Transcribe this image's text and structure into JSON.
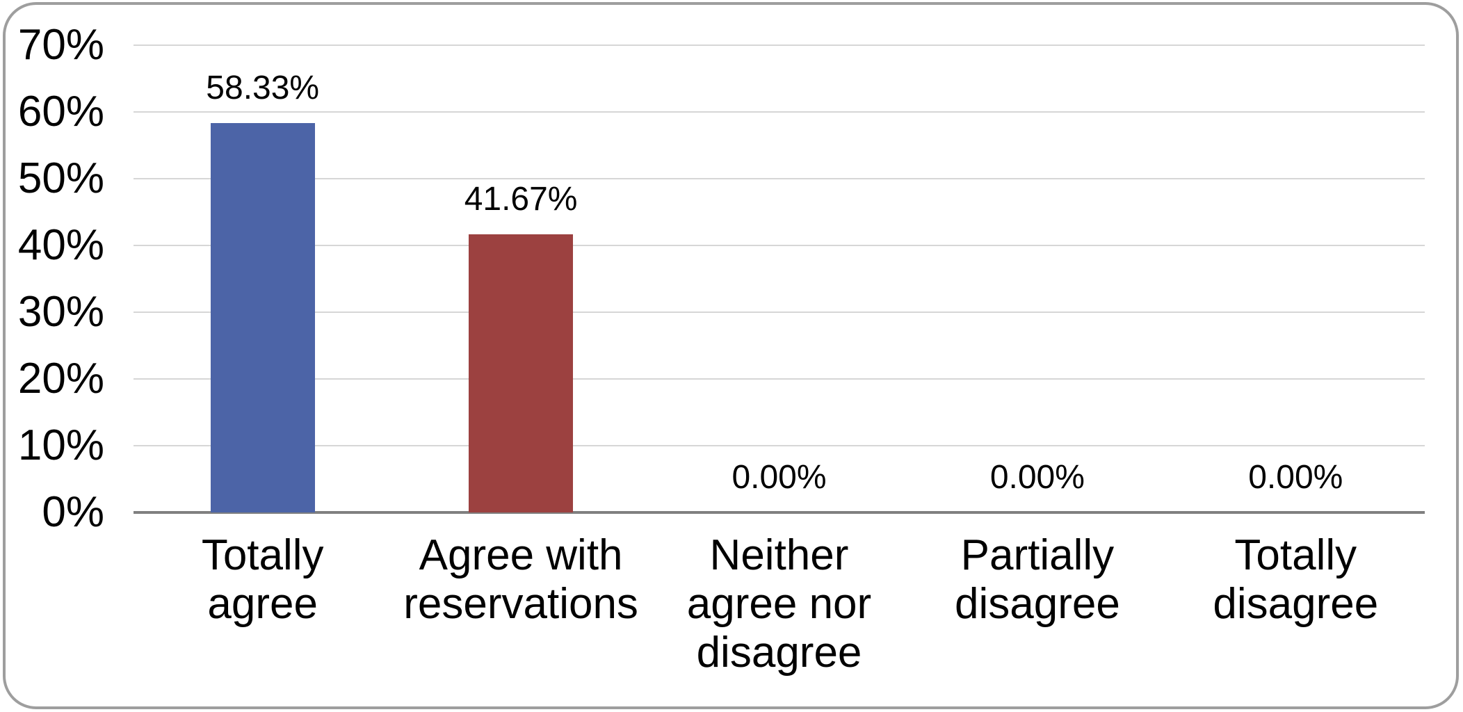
{
  "figure": {
    "type": "static-chart-figure",
    "frame_border_color": "#9e9e9e",
    "background_color": "#ffffff"
  },
  "chart_data": {
    "type": "bar",
    "title": "",
    "xlabel": "",
    "ylabel": "",
    "categories": [
      "Totally agree",
      "Agree with reservations",
      "Neither agree nor disagree",
      "Partially disagree",
      "Totally disagree"
    ],
    "category_lines": [
      "Totally\nagree",
      "Agree with\nreservations",
      "Neither\nagree nor\ndisagree",
      "Partially\ndisagree",
      "Totally\ndisagree"
    ],
    "values": [
      58.33,
      41.67,
      0,
      0,
      0
    ],
    "data_labels": [
      "58.33%",
      "41.67%",
      "0.00%",
      "0.00%",
      "0.00%"
    ],
    "bar_colors": [
      "#4c64a7",
      "#9c4140",
      "none",
      "none",
      "none"
    ],
    "ylim": [
      0,
      70
    ],
    "ytick_step": 10,
    "yticks": [
      "0%",
      "10%",
      "20%",
      "30%",
      "40%",
      "50%",
      "60%",
      "70%"
    ],
    "grid": true,
    "gridline_color": "#d6d6d6",
    "axis_line_color": "#808080",
    "legend": "none",
    "text_color": "#000000"
  }
}
